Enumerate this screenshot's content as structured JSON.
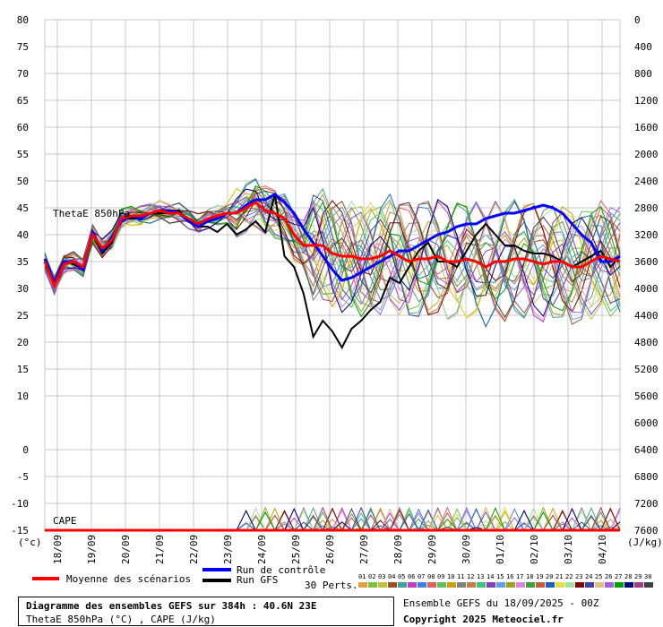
{
  "chart_data": {
    "type": "line",
    "left_axis_ticks": [
      "80",
      "75",
      "70",
      "65",
      "60",
      "55",
      "50",
      "45",
      "40",
      "35",
      "30",
      "25",
      "20",
      "15",
      "10",
      "0",
      "-5",
      "-10",
      "-15"
    ],
    "left_axis_values": [
      80,
      75,
      70,
      65,
      60,
      55,
      50,
      45,
      40,
      35,
      30,
      25,
      20,
      15,
      10,
      0,
      -5,
      -10,
      -15
    ],
    "right_axis_ticks": [
      "7600",
      "7200",
      "6800",
      "6400",
      "6000",
      "5600",
      "5200",
      "4800",
      "4400",
      "4000",
      "3600",
      "3200",
      "2800",
      "2400",
      "2000",
      "1600",
      "1200",
      "800",
      "400",
      "0"
    ],
    "left_unit": "(°c)",
    "right_unit": "(J/kg)",
    "x_labels": [
      "18/09",
      "19/09",
      "20/09",
      "21/09",
      "22/09",
      "23/09",
      "24/09",
      "25/09",
      "26/09",
      "27/09",
      "28/09",
      "29/09",
      "30/09",
      "01/10",
      "02/10",
      "03/10",
      "04/10"
    ],
    "series_label_theta": "ThetaE 850hPa",
    "series_label_cape": "CAPE",
    "mean_theta": [
      35,
      30.5,
      34.5,
      35,
      34,
      40,
      37.5,
      39,
      43,
      43.5,
      43.5,
      44,
      44.5,
      44,
      44,
      43,
      42,
      43,
      43.5,
      44,
      44,
      45,
      46,
      44.5,
      44,
      43,
      40,
      38,
      38,
      38,
      36.5,
      36,
      36,
      35.5,
      35.5,
      36,
      37,
      36,
      35,
      35.5,
      35.5,
      36,
      35,
      35,
      35.5,
      35,
      34,
      35,
      35,
      35.5,
      35.5,
      35,
      34.5,
      35,
      35,
      34,
      34,
      35,
      36,
      35.5,
      35
    ],
    "control_theta": [
      35.5,
      31,
      35,
      35,
      33.5,
      40.5,
      37,
      39.5,
      42.5,
      43.5,
      43,
      44,
      44.5,
      44.5,
      44,
      42.5,
      41.5,
      42.5,
      43,
      44,
      44,
      45.5,
      46.5,
      46.5,
      47.5,
      46,
      44,
      41,
      38.5,
      36,
      33.5,
      31.5,
      32,
      33,
      34,
      35,
      36,
      37,
      37,
      38,
      39,
      40,
      40.5,
      41.5,
      42,
      42,
      43,
      43.5,
      44,
      44,
      44.5,
      45,
      45.5,
      45,
      44,
      42,
      40,
      38.5,
      35,
      35,
      36
    ],
    "gfs_theta": [
      35.5,
      31,
      35,
      34.5,
      33.5,
      40,
      36.5,
      38.5,
      43,
      43,
      43,
      44,
      44,
      44,
      44.5,
      42.5,
      41.5,
      41.5,
      40.5,
      42,
      40,
      41,
      42.5,
      40.5,
      47.5,
      36,
      34,
      29,
      21,
      24,
      22,
      19,
      22.5,
      24,
      26,
      27.5,
      32,
      31,
      34,
      37,
      38.5,
      35,
      35,
      34,
      37,
      40,
      42,
      40,
      38,
      38,
      37,
      36.5,
      36.5,
      36,
      35,
      34,
      35,
      36,
      37,
      34,
      36
    ],
    "legend": {
      "mean": "Moyenne des scénarios",
      "control": "Run de contrôle",
      "gfs": "Run GFS",
      "perts": "30 Perts.",
      "pert_numbers": [
        "01",
        "02",
        "03",
        "04",
        "05",
        "06",
        "07",
        "08",
        "09",
        "10",
        "11",
        "12",
        "13",
        "14",
        "15",
        "16",
        "17",
        "18",
        "19",
        "20",
        "21",
        "22",
        "23",
        "24",
        "25",
        "26",
        "27",
        "28",
        "29",
        "30"
      ]
    },
    "colors": {
      "mean": "#ff0000",
      "control": "#0000ff",
      "gfs": "#000000",
      "grid": "#c8c8c8",
      "perts": [
        "#e0a040",
        "#80c040",
        "#c0c040",
        "#a05020",
        "#40a0a0",
        "#c040c0",
        "#4080e0",
        "#e06060",
        "#60c060",
        "#d0a000",
        "#808080",
        "#c08040",
        "#40c080",
        "#8040c0",
        "#60a0e0",
        "#a0a020",
        "#e080e0",
        "#40a040",
        "#c06040",
        "#2060c0",
        "#e0e040",
        "#a0e0a0",
        "#800000",
        "#4040a0",
        "#e0c080",
        "#a060e0",
        "#00a000",
        "#000080",
        "#a04080",
        "#404040"
      ]
    }
  },
  "bottom_box": {
    "title": "Diagramme des ensembles GEFS sur 384h : 40.6N 23E",
    "subtitle": "ThetaE 850hPa (°C) , CAPE (J/kg)"
  },
  "run_info": "Ensemble GEFS du 18/09/2025 - 00Z",
  "copyright": "Copyright 2025 Meteociel.fr"
}
